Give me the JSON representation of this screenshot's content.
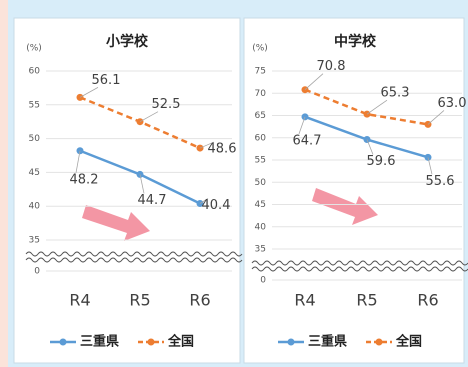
{
  "chart_data": [
    {
      "type": "line",
      "title": "小学校",
      "y_unit": "(%)",
      "categories": [
        "R4",
        "R5",
        "R6"
      ],
      "ylim": [
        35,
        60
      ],
      "yticks": [
        0,
        35,
        40,
        45,
        50,
        55,
        60
      ],
      "axis_break": true,
      "series": [
        {
          "name": "三重県",
          "color": "#5b9bd5",
          "dashed": false,
          "values": [
            48.2,
            44.7,
            40.4
          ]
        },
        {
          "name": "全国",
          "color": "#ed7d31",
          "dashed": true,
          "values": [
            56.1,
            52.5,
            48.6
          ]
        }
      ]
    },
    {
      "type": "line",
      "title": "中学校",
      "y_unit": "(%)",
      "categories": [
        "R4",
        "R5",
        "R6"
      ],
      "ylim": [
        35,
        75
      ],
      "yticks": [
        0,
        35,
        40,
        45,
        50,
        55,
        60,
        65,
        70,
        75
      ],
      "axis_break": true,
      "series": [
        {
          "name": "三重県",
          "color": "#5b9bd5",
          "dashed": false,
          "values": [
            64.7,
            59.6,
            55.6
          ]
        },
        {
          "name": "全国",
          "color": "#ed7d31",
          "dashed": true,
          "values": [
            70.8,
            65.3,
            63
          ],
          "value_labels": [
            "70.8",
            "65.3",
            "63.0"
          ]
        }
      ]
    }
  ]
}
